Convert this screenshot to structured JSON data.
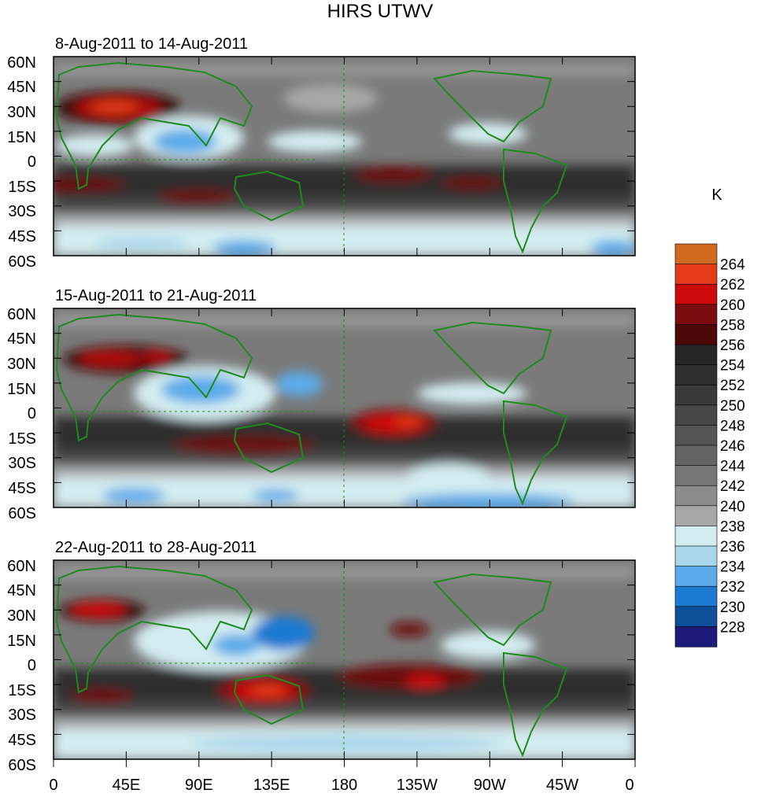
{
  "title": "HIRS UTWV",
  "units": "K",
  "panels": [
    {
      "period": "8-Aug-2011 to 14-Aug-2011"
    },
    {
      "period": "15-Aug-2011 to 21-Aug-2011"
    },
    {
      "period": "22-Aug-2011 to 28-Aug-2011"
    }
  ],
  "lat_labels": [
    "60N",
    "45N",
    "30N",
    "15N",
    "0",
    "15S",
    "30S",
    "45S",
    "60S"
  ],
  "lon_labels": [
    "0",
    "45E",
    "90E",
    "135E",
    "180",
    "135W",
    "90W",
    "45W",
    "0"
  ],
  "colorbar": {
    "labels": [
      "264",
      "262",
      "260",
      "258",
      "256",
      "254",
      "252",
      "250",
      "248",
      "246",
      "244",
      "242",
      "240",
      "238",
      "236",
      "234",
      "232",
      "230",
      "228"
    ],
    "colors": [
      "#d0691f",
      "#e33a18",
      "#cc0a0a",
      "#7a0d0d",
      "#4d0808",
      "#262626",
      "#2f2f2f",
      "#3a3a3a",
      "#474747",
      "#555555",
      "#646464",
      "#777777",
      "#8c8c8c",
      "#a8a8a8",
      "#d3ecf0",
      "#a9d6ea",
      "#5cabea",
      "#1e79d2",
      "#0d5098",
      "#1c1b7a"
    ]
  },
  "chart_data": {
    "type": "heatmap",
    "variable": "HIRS UTWV",
    "units": "K",
    "lon_range": [
      0,
      360
    ],
    "lat_range": [
      -60,
      60
    ],
    "levels": [
      228,
      230,
      232,
      234,
      236,
      238,
      240,
      242,
      244,
      246,
      248,
      250,
      252,
      254,
      256,
      258,
      260,
      262,
      264
    ],
    "panels": [
      {
        "period": "8-Aug-2011 to 14-Aug-2011",
        "features": [
          {
            "lon": 40,
            "lat": 33,
            "value": 262
          },
          {
            "lon": 35,
            "lat": -15,
            "value": 257
          },
          {
            "lon": 75,
            "lat": -20,
            "value": 257
          },
          {
            "lon": 90,
            "lat": 12,
            "value": 233
          },
          {
            "lon": 205,
            "lat": -10,
            "value": 257
          },
          {
            "lon": 250,
            "lat": -12,
            "value": 257
          },
          {
            "lon": 120,
            "lat": -55,
            "value": 232
          },
          {
            "lon": 355,
            "lat": -55,
            "value": 232
          }
        ]
      },
      {
        "period": "15-Aug-2011 to 21-Aug-2011",
        "features": [
          {
            "lon": 40,
            "lat": 33,
            "value": 261
          },
          {
            "lon": 55,
            "lat": 33,
            "value": 259
          },
          {
            "lon": 120,
            "lat": -20,
            "value": 258
          },
          {
            "lon": 100,
            "lat": 15,
            "value": 234
          },
          {
            "lon": 200,
            "lat": -8,
            "value": 261
          },
          {
            "lon": 240,
            "lat": -57,
            "value": 231
          },
          {
            "lon": 70,
            "lat": -55,
            "value": 233
          }
        ]
      },
      {
        "period": "22-Aug-2011 to 28-Aug-2011",
        "features": [
          {
            "lon": 30,
            "lat": 34,
            "value": 261
          },
          {
            "lon": 130,
            "lat": -18,
            "value": 262
          },
          {
            "lon": 225,
            "lat": -10,
            "value": 259
          },
          {
            "lon": 150,
            "lat": 15,
            "value": 231
          },
          {
            "lon": 115,
            "lat": 10,
            "value": 233
          },
          {
            "lon": 225,
            "lat": 20,
            "value": 257
          },
          {
            "lon": 35,
            "lat": -18,
            "value": 257
          }
        ]
      }
    ]
  }
}
